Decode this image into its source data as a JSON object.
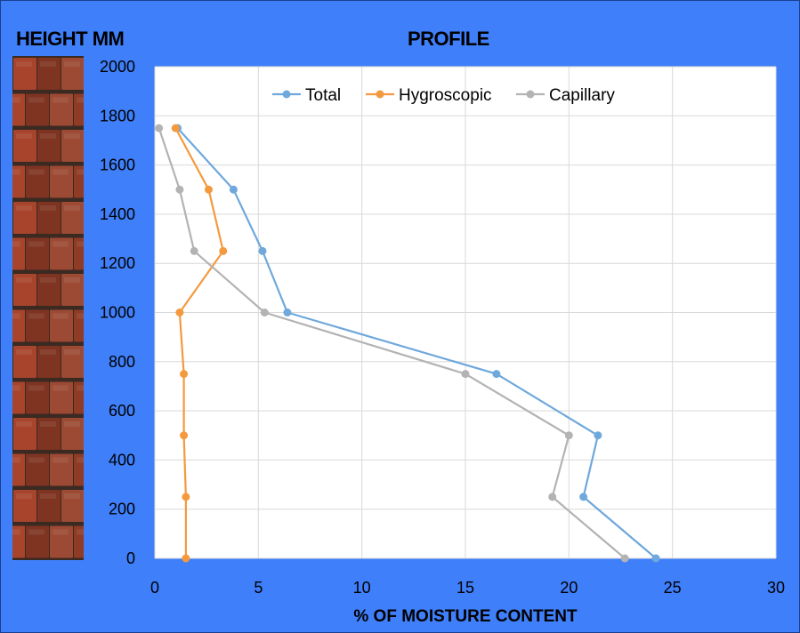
{
  "header": {
    "left_title": "HEIGHT MM",
    "chart_title": "PROFILE"
  },
  "chart_data": {
    "type": "line",
    "title": "PROFILE",
    "xlabel": "% OF MOISTURE CONTENT",
    "ylabel": "HEIGHT MM",
    "xlim": [
      0,
      30
    ],
    "ylim": [
      0,
      2000
    ],
    "xticks": [
      0,
      5,
      10,
      15,
      20,
      25,
      30
    ],
    "yticks": [
      0,
      200,
      400,
      600,
      800,
      1000,
      1200,
      1400,
      1600,
      1800,
      2000
    ],
    "grid": true,
    "legend_position": "top",
    "series": [
      {
        "name": "Total",
        "color": "#6fa8dc",
        "points": [
          [
            24.2,
            0
          ],
          [
            20.7,
            250
          ],
          [
            21.4,
            500
          ],
          [
            16.5,
            750
          ],
          [
            6.4,
            1000
          ],
          [
            5.2,
            1250
          ],
          [
            3.8,
            1500
          ],
          [
            1.1,
            1750
          ]
        ]
      },
      {
        "name": "Hygroscopic",
        "color": "#f39a3e",
        "points": [
          [
            1.5,
            0
          ],
          [
            1.5,
            250
          ],
          [
            1.4,
            500
          ],
          [
            1.4,
            750
          ],
          [
            1.2,
            1000
          ],
          [
            3.3,
            1250
          ],
          [
            2.6,
            1500
          ],
          [
            1.0,
            1750
          ]
        ]
      },
      {
        "name": "Capillary",
        "color": "#b3b3b3",
        "points": [
          [
            22.7,
            0
          ],
          [
            19.2,
            250
          ],
          [
            20.0,
            500
          ],
          [
            15.0,
            750
          ],
          [
            5.3,
            1000
          ],
          [
            1.9,
            1250
          ],
          [
            1.2,
            1500
          ],
          [
            0.2,
            1750
          ]
        ]
      }
    ]
  }
}
